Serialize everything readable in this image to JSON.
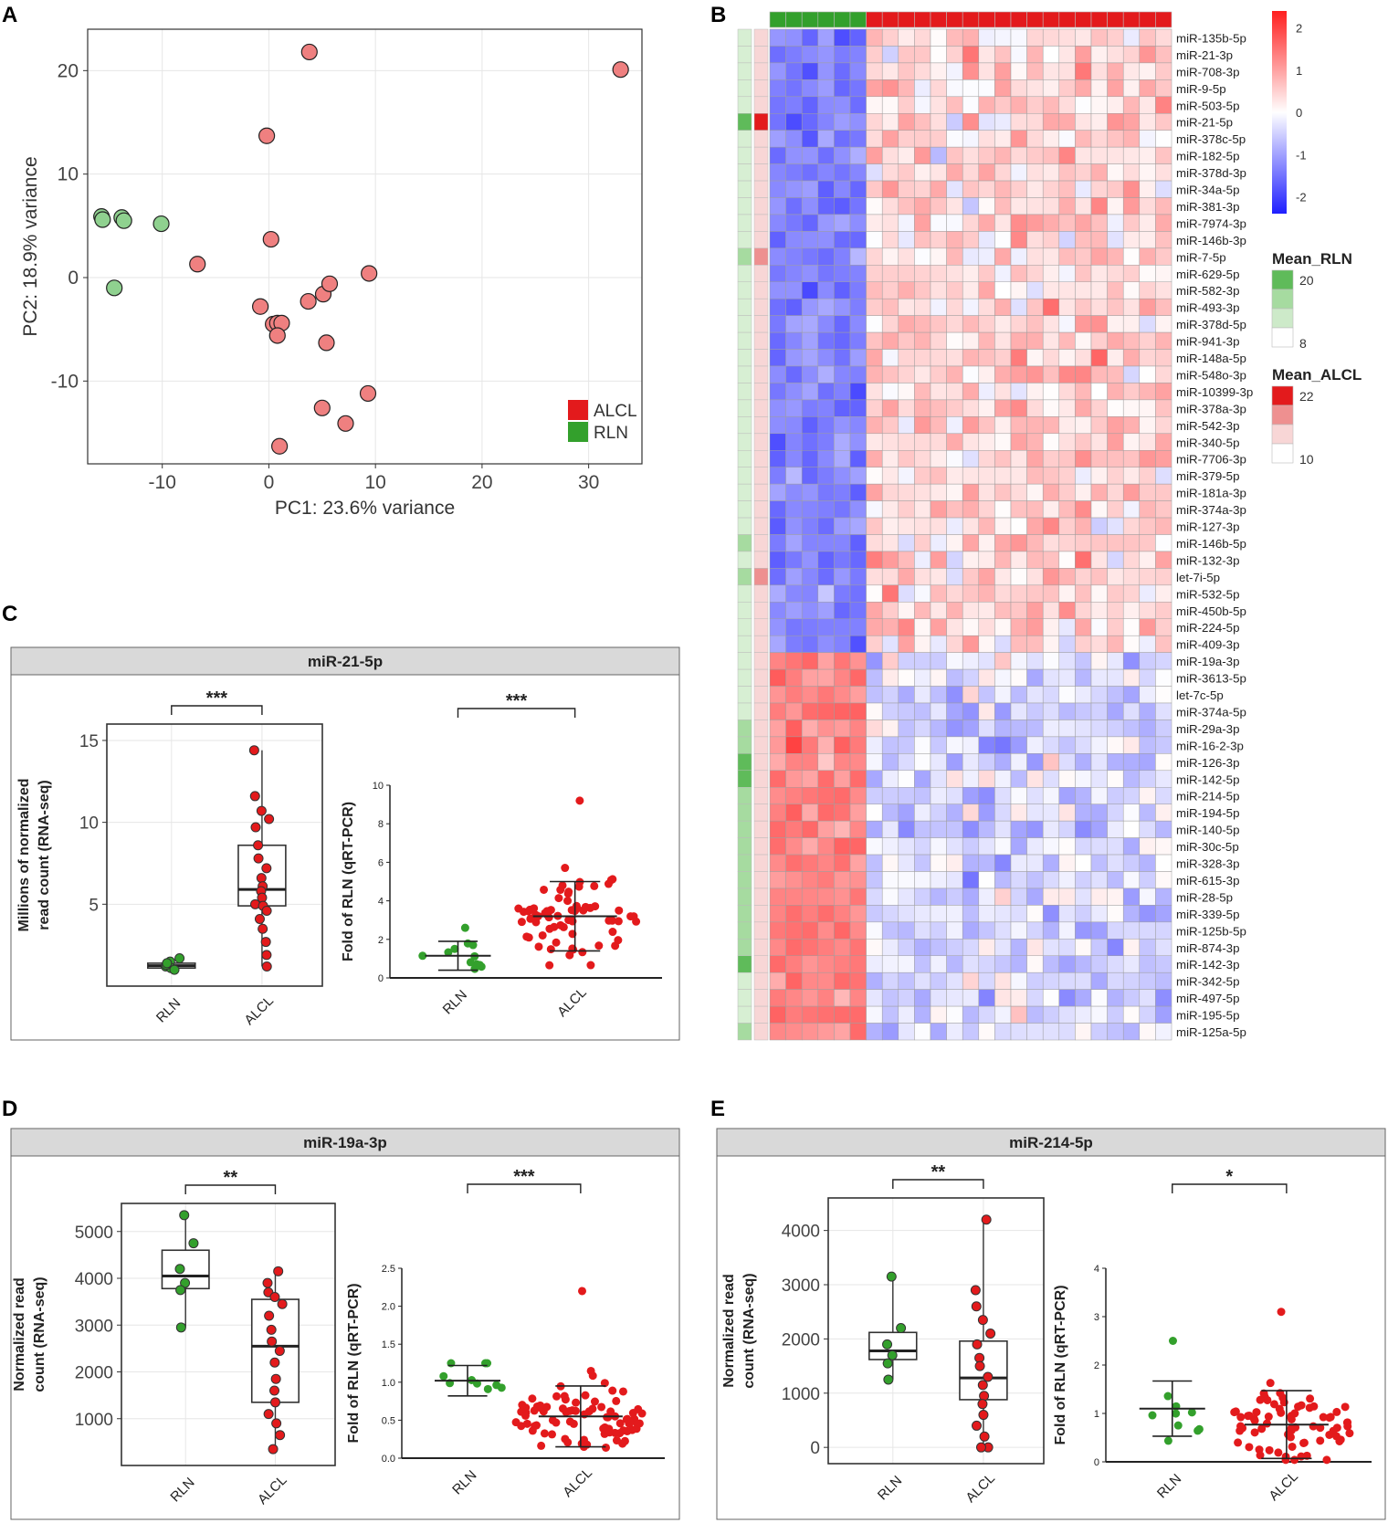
{
  "panels": {
    "A": "A",
    "B": "B",
    "C": "C",
    "D": "D",
    "E": "E"
  },
  "colors": {
    "alcl": "#e31a1c",
    "alcl_point": "#ef8080",
    "rln": "#33a02c",
    "rln_point": "#8fd18f",
    "heat_low": "#1f1fff",
    "heat_mid": "#ffffff",
    "heat_high": "#ff1f1f",
    "strip_header": "#d9d9d9",
    "grid": "#e6e6e6"
  },
  "chart_data": [
    {
      "id": "A",
      "type": "scatter",
      "title": "",
      "xlabel": "PC1: 23.6% variance",
      "ylabel": "PC2: 18.9% variance",
      "xlim": [
        -17,
        35
      ],
      "ylim": [
        -18,
        24
      ],
      "xticks": [
        -10,
        0,
        10,
        20,
        30
      ],
      "yticks": [
        -10,
        0,
        10,
        20
      ],
      "legend": {
        "position": "bottom-right",
        "entries": [
          "ALCL",
          "RLN"
        ]
      },
      "series": [
        {
          "name": "RLN",
          "x": [
            -15.7,
            -15.6,
            -13.8,
            -13.6,
            -10.1,
            -14.5
          ],
          "y": [
            5.9,
            5.6,
            5.8,
            5.5,
            5.2,
            -1.0
          ]
        },
        {
          "name": "ALCL",
          "x": [
            3.8,
            33.0,
            -0.2,
            0.2,
            -6.7,
            -0.8,
            0.4,
            0.8,
            1.2,
            0.8,
            3.7,
            5.1,
            5.7,
            9.4,
            5.4,
            9.3,
            5.0,
            7.2,
            1.0
          ],
          "y": [
            21.8,
            20.1,
            13.7,
            3.7,
            1.3,
            -2.8,
            -4.5,
            -4.4,
            -4.4,
            -5.6,
            -2.3,
            -1.6,
            -0.6,
            0.4,
            -6.3,
            -11.2,
            -12.6,
            -14.1,
            -16.3
          ]
        }
      ]
    },
    {
      "id": "B",
      "type": "heatmap",
      "column_groups": {
        "RLN": 6,
        "ALCL": 19
      },
      "legend_title_scale": "",
      "scale_ticks": [
        "2",
        "1",
        "0",
        "-1",
        "-2"
      ],
      "scale_range": [
        -2.4,
        2.4
      ],
      "annotation_legends": [
        {
          "title": "Mean_RLN",
          "max_label": "20",
          "min_label": "8"
        },
        {
          "title": "Mean_ALCL",
          "max_label": "22",
          "min_label": "10"
        }
      ],
      "rows": [
        "miR-135b-5p",
        "miR-21-3p",
        "miR-708-3p",
        "miR-9-5p",
        "miR-503-5p",
        "miR-21-5p",
        "miR-378c-5p",
        "miR-182-5p",
        "miR-378d-3p",
        "miR-34a-5p",
        "miR-381-3p",
        "miR-7974-3p",
        "miR-146b-3p",
        "miR-7-5p",
        "miR-629-5p",
        "miR-582-3p",
        "miR-493-3p",
        "miR-378d-5p",
        "miR-941-3p",
        "miR-148a-5p",
        "miR-548o-3p",
        "miR-10399-3p",
        "miR-378a-3p",
        "miR-542-3p",
        "miR-340-5p",
        "miR-7706-3p",
        "miR-379-5p",
        "miR-181a-3p",
        "miR-374a-3p",
        "miR-127-3p",
        "miR-146b-5p",
        "miR-132-3p",
        "let-7i-5p",
        "miR-532-5p",
        "miR-450b-5p",
        "miR-224-5p",
        "miR-409-3p",
        "miR-19a-3p",
        "miR-3613-5p",
        "let-7c-5p",
        "miR-374a-5p",
        "miR-29a-3p",
        "miR-16-2-3p",
        "miR-126-3p",
        "miR-142-5p",
        "miR-214-5p",
        "miR-194-5p",
        "miR-140-5p",
        "miR-30c-5p",
        "miR-328-3p",
        "miR-615-3p",
        "miR-28-5p",
        "miR-339-5p",
        "miR-125b-5p",
        "miR-874-3p",
        "miR-142-3p",
        "miR-342-5p",
        "miR-497-5p",
        "miR-195-5p",
        "miR-125a-5p"
      ],
      "row_direction": [
        1,
        1,
        1,
        1,
        1,
        1,
        1,
        1,
        1,
        1,
        1,
        1,
        1,
        1,
        1,
        1,
        1,
        1,
        1,
        1,
        1,
        1,
        1,
        1,
        1,
        1,
        1,
        1,
        1,
        1,
        1,
        1,
        1,
        1,
        1,
        1,
        1,
        -1,
        -1,
        -1,
        -1,
        -1,
        -1,
        -1,
        -1,
        -1,
        -1,
        -1,
        -1,
        -1,
        -1,
        -1,
        -1,
        -1,
        -1,
        -1,
        -1,
        -1,
        -1,
        -1
      ],
      "mean_rln_level": [
        1,
        1,
        1,
        1,
        1,
        3,
        1,
        1,
        1,
        1,
        1,
        1,
        1,
        2,
        1,
        1,
        1,
        1,
        1,
        1,
        1,
        1,
        1,
        1,
        1,
        1,
        1,
        1,
        1,
        1,
        2,
        1,
        2,
        1,
        1,
        1,
        1,
        1,
        1,
        1,
        1,
        2,
        2,
        3,
        3,
        2,
        2,
        2,
        2,
        2,
        2,
        2,
        2,
        2,
        2,
        3,
        1,
        1,
        1,
        2
      ],
      "mean_alcl_level": [
        1,
        1,
        1,
        1,
        1,
        3,
        1,
        1,
        1,
        1,
        1,
        1,
        1,
        2,
        1,
        1,
        1,
        1,
        1,
        1,
        1,
        1,
        1,
        1,
        1,
        1,
        1,
        1,
        1,
        1,
        1,
        1,
        2,
        1,
        1,
        1,
        1,
        1,
        1,
        1,
        1,
        1,
        1,
        1,
        1,
        1,
        1,
        1,
        1,
        1,
        1,
        1,
        1,
        1,
        1,
        1,
        1,
        1,
        1,
        1
      ]
    },
    {
      "id": "C",
      "strip_title": "miR-21-5p",
      "left": {
        "type": "box",
        "ylabel_lines": [
          "Millions of normalized",
          "read count (RNA-seq)"
        ],
        "ylim": [
          0,
          16
        ],
        "yticks": [
          5,
          10,
          15
        ],
        "categories": [
          "RLN",
          "ALCL"
        ],
        "boxes": [
          {
            "q1": 1.1,
            "median": 1.25,
            "q3": 1.4,
            "lower": 0.9,
            "upper": 1.6
          },
          {
            "q1": 4.9,
            "median": 5.9,
            "q3": 8.6,
            "lower": 1.2,
            "upper": 14.4
          }
        ],
        "points": [
          [
            1.5,
            1.7,
            1.2,
            1.1,
            1.3,
            1.4,
            1.0
          ],
          [
            14.4,
            11.6,
            10.7,
            10.2,
            9.7,
            8.6,
            7.8,
            7.2,
            6.6,
            6.1,
            5.8,
            5.4,
            5.0,
            4.9,
            4.6,
            4.1,
            3.5,
            2.7,
            1.9,
            1.2
          ]
        ],
        "significance": "***"
      },
      "right": {
        "type": "dot",
        "ylabel": "Fold of RLN (qRT-PCR)",
        "ylim": [
          0,
          10
        ],
        "yticks": [
          0,
          2,
          4,
          6,
          8,
          10
        ],
        "categories": [
          "RLN",
          "ALCL"
        ],
        "means": [
          1.15,
          3.2
        ],
        "sd": [
          0.75,
          1.8
        ],
        "n": [
          12,
          70
        ],
        "max_point": [
          2.6,
          9.2
        ],
        "seeds": [
          11,
          23
        ],
        "significance": "***"
      }
    },
    {
      "id": "D",
      "strip_title": "miR-19a-3p",
      "left": {
        "type": "box",
        "ylabel_lines": [
          "Normalized read",
          "count (RNA-seq)"
        ],
        "ylim": [
          0,
          5600
        ],
        "yticks": [
          1000,
          2000,
          3000,
          4000,
          5000
        ],
        "categories": [
          "RLN",
          "ALCL"
        ],
        "boxes": [
          {
            "q1": 3780,
            "median": 4050,
            "q3": 4600,
            "lower": 2950,
            "upper": 5350
          },
          {
            "q1": 1350,
            "median": 2550,
            "q3": 3550,
            "lower": 350,
            "upper": 4150
          }
        ],
        "points": [
          [
            5350,
            4750,
            4200,
            3900,
            3750,
            2950
          ],
          [
            4150,
            3900,
            3700,
            3600,
            3450,
            3200,
            2900,
            2650,
            2450,
            2200,
            1850,
            1600,
            1350,
            1100,
            900,
            650,
            350
          ]
        ],
        "significance": "**"
      },
      "right": {
        "type": "dot",
        "ylabel": "Fold of RLN (qRT-PCR)",
        "ylim": [
          0,
          2.5
        ],
        "yticks": [
          0.0,
          0.5,
          1.0,
          1.5,
          2.0,
          2.5
        ],
        "categories": [
          "RLN",
          "ALCL"
        ],
        "means": [
          1.02,
          0.55
        ],
        "sd": [
          0.2,
          0.4
        ],
        "n": [
          10,
          85
        ],
        "max_point": [
          1.25,
          2.2
        ],
        "seeds": [
          5,
          37
        ],
        "significance": "***"
      }
    },
    {
      "id": "E",
      "strip_title": "miR-214-5p",
      "left": {
        "type": "box",
        "ylabel_lines": [
          "Normalized read",
          "count (RNA-seq)"
        ],
        "ylim": [
          -300,
          4600
        ],
        "yticks": [
          0,
          1000,
          2000,
          3000,
          4000
        ],
        "categories": [
          "RLN",
          "ALCL"
        ],
        "boxes": [
          {
            "q1": 1620,
            "median": 1780,
            "q3": 2120,
            "lower": 1250,
            "upper": 3150
          },
          {
            "q1": 880,
            "median": 1280,
            "q3": 1960,
            "lower": 0,
            "upper": 4200
          }
        ],
        "points": [
          [
            3150,
            2200,
            1900,
            1700,
            1550,
            1250
          ],
          [
            4200,
            2900,
            2600,
            2350,
            2100,
            1900,
            1650,
            1500,
            1300,
            1150,
            950,
            800,
            600,
            400,
            200,
            0,
            0
          ]
        ],
        "significance": "**"
      },
      "right": {
        "type": "dot",
        "ylabel": "Fold of RLN (qRT-PCR)",
        "ylim": [
          0,
          4
        ],
        "yticks": [
          0,
          1,
          2,
          3,
          4
        ],
        "categories": [
          "RLN",
          "ALCL"
        ],
        "means": [
          1.1,
          0.77
        ],
        "sd": [
          0.57,
          0.7
        ],
        "n": [
          10,
          75
        ],
        "max_point": [
          2.5,
          3.1
        ],
        "seeds": [
          7,
          53
        ],
        "significance": "*"
      }
    }
  ]
}
